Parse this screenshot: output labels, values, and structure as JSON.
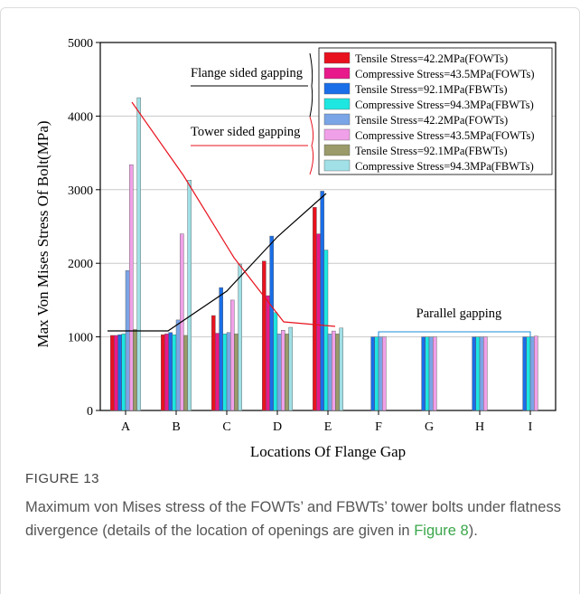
{
  "chart_data": {
    "type": "bar",
    "ylabel": "Max Von Mises Stress Of Bolt(MPa)",
    "xlabel": "Locations Of Flange Gap",
    "categories": [
      "A",
      "B",
      "C",
      "D",
      "E",
      "F",
      "G",
      "H",
      "I"
    ],
    "series": [
      {
        "name": "Tensile Stress=42.2MPa(FOWTs)",
        "color": "#e8121e",
        "values": [
          1020,
          1030,
          1290,
          2030,
          2760,
          null,
          null,
          null,
          null
        ]
      },
      {
        "name": "Compressive Stress=43.5MPa(FOWTs)",
        "color": "#e8198a",
        "values": [
          1020,
          1040,
          1050,
          1560,
          2400,
          null,
          null,
          null,
          null
        ]
      },
      {
        "name": "Tensile Stress=92.1MPa(FBWTs)",
        "color": "#1a6ee8",
        "values": [
          1030,
          1060,
          1670,
          2370,
          2980,
          1000,
          1000,
          1000,
          1000
        ]
      },
      {
        "name": "Compressive Stress=94.3MPa(FBWTs)",
        "color": "#1ee6e0",
        "values": [
          1040,
          1030,
          1040,
          1330,
          2180,
          1000,
          1000,
          1000,
          1000
        ]
      },
      {
        "name": "Tensile Stress=42.2MPa(FOWTs)",
        "color": "#7aa5e6",
        "values": [
          1900,
          1230,
          1060,
          1040,
          1040,
          1000,
          1000,
          1000,
          1000
        ]
      },
      {
        "name": "Compressive Stress=43.5MPa(FOWTs)",
        "color": "#f0a0e8",
        "values": [
          3340,
          2400,
          1500,
          1090,
          1080,
          1000,
          1000,
          1000,
          1010
        ]
      },
      {
        "name": "Tensile Stress=92.1MPa(FBWTs)",
        "color": "#9a9a6a",
        "values": [
          1100,
          1020,
          1040,
          1040,
          1040,
          null,
          null,
          null,
          null
        ]
      },
      {
        "name": "Compressive Stress=94.3MPa(FBWTs)",
        "color": "#a0e0e6",
        "values": [
          4250,
          3130,
          1990,
          1130,
          1120,
          null,
          null,
          null,
          null
        ]
      }
    ],
    "ylim": [
      0,
      5000
    ],
    "yticks": [
      0,
      1000,
      2000,
      3000,
      4000,
      5000
    ],
    "grid": true,
    "annotations": [
      "Flange sided gapping",
      "Tower sided gapping",
      "Parallel gapping"
    ]
  },
  "figure": {
    "label": "FIGURE 13",
    "caption": [
      "Maximum von Mises stress of the FOWTs’ and FBWTs’ tower bolts under flatness divergence (details of the location of openings are given in ",
      "Figure 8",
      ")."
    ]
  }
}
